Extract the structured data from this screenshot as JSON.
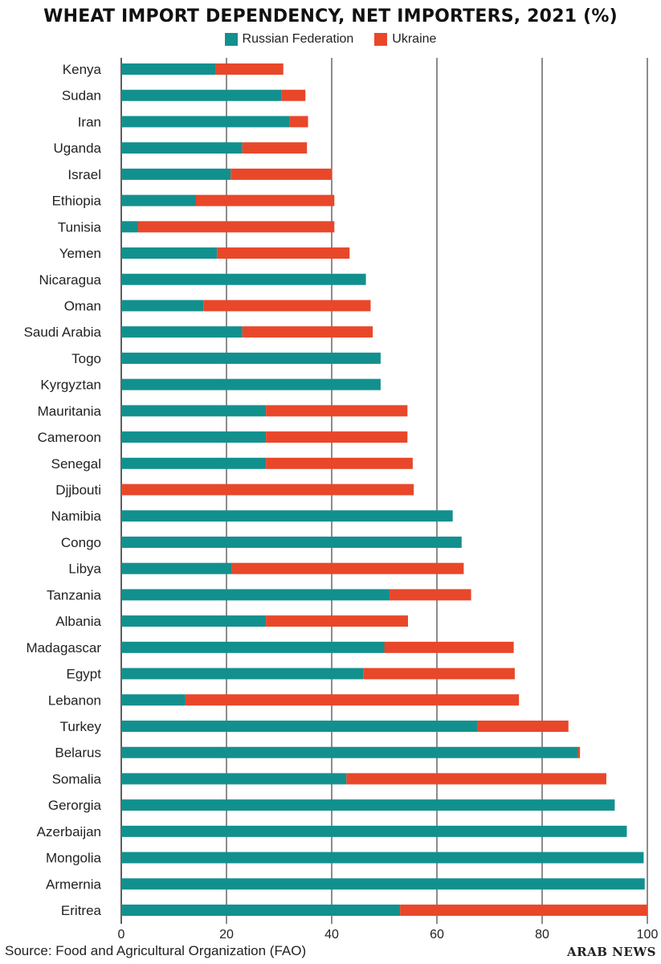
{
  "chart_data": {
    "type": "bar",
    "orientation": "horizontal",
    "stacked": true,
    "title": "WHEAT IMPORT DEPENDENCY, NET IMPORTERS, 2021 (%)",
    "xlim": [
      0,
      100
    ],
    "x_ticks": [
      0,
      20,
      40,
      60,
      80,
      100
    ],
    "grid": true,
    "legend_position": "top-center",
    "categories": [
      "Kenya",
      "Sudan",
      "Iran",
      "Uganda",
      "Israel",
      "Ethiopia",
      "Tunisia",
      "Yemen",
      "Nicaragua",
      "Oman",
      "Saudi Arabia",
      "Togo",
      "Kyrgyztan",
      "Mauritania",
      "Cameroon",
      "Senegal",
      "Djjbouti",
      "Namibia",
      "Congo",
      "Libya",
      "Tanzania",
      "Albania",
      "Madagascar",
      "Egypt",
      "Lebanon",
      "Turkey",
      "Belarus",
      "Somalia",
      "Gerorgia",
      "Azerbaijan",
      "Mongolia",
      "Armernia",
      "Eritrea"
    ],
    "series": [
      {
        "name": "Russian Federation",
        "color": "#12908e",
        "values": [
          18,
          30.5,
          32,
          23,
          20.8,
          14.2,
          3.2,
          18.2,
          46.5,
          15.6,
          23,
          49.3,
          49.3,
          27.5,
          27.5,
          27.5,
          0,
          63,
          64.7,
          21,
          51,
          27.5,
          50,
          46,
          12.2,
          67.7,
          86.8,
          42.8,
          93.8,
          96.1,
          99.3,
          99.5,
          53
        ]
      },
      {
        "name": "Ukraine",
        "color": "#e8472a",
        "values": [
          12.8,
          4.5,
          3.5,
          12.3,
          19.3,
          26.3,
          37.3,
          25.2,
          0,
          31.8,
          24.8,
          0,
          0,
          26.9,
          26.9,
          27.9,
          55.6,
          0,
          0,
          44.1,
          15.5,
          27,
          24.6,
          28.8,
          63.4,
          17.3,
          0.4,
          49.4,
          0,
          0,
          0,
          0,
          47
        ]
      }
    ]
  },
  "legend": {
    "russia": "Russian Federation",
    "ukraine": "Ukraine"
  },
  "colors": {
    "russia": "#12908e",
    "ukraine": "#e8472a",
    "grid": "#1a1a1a"
  },
  "footer": {
    "source": "Source: Food and Agricultural Organization (FAO)",
    "logo": "ARAB NEWS"
  }
}
